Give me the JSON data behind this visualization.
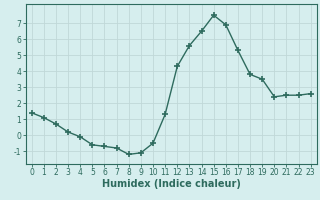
{
  "x": [
    0,
    1,
    2,
    3,
    4,
    5,
    6,
    7,
    8,
    9,
    10,
    11,
    12,
    13,
    14,
    15,
    16,
    17,
    18,
    19,
    20,
    21,
    22,
    23
  ],
  "y": [
    1.4,
    1.1,
    0.7,
    0.2,
    -0.1,
    -0.6,
    -0.7,
    -0.8,
    -1.2,
    -1.1,
    -0.5,
    1.3,
    4.3,
    5.6,
    6.5,
    7.5,
    6.9,
    5.3,
    3.8,
    3.5,
    2.4,
    2.5,
    2.5,
    2.6
  ],
  "line_color": "#2e6b5e",
  "marker": "+",
  "marker_size": 4,
  "xlabel": "Humidex (Indice chaleur)",
  "ylim": [
    -1.8,
    8.2
  ],
  "xlim": [
    -0.5,
    23.5
  ],
  "yticks": [
    -1,
    0,
    1,
    2,
    3,
    4,
    5,
    6,
    7
  ],
  "xticks": [
    0,
    1,
    2,
    3,
    4,
    5,
    6,
    7,
    8,
    9,
    10,
    11,
    12,
    13,
    14,
    15,
    16,
    17,
    18,
    19,
    20,
    21,
    22,
    23
  ],
  "bg_color": "#d6eeee",
  "grid_color": "#c0d8d8",
  "tick_label_fontsize": 5.5,
  "xlabel_fontsize": 7
}
